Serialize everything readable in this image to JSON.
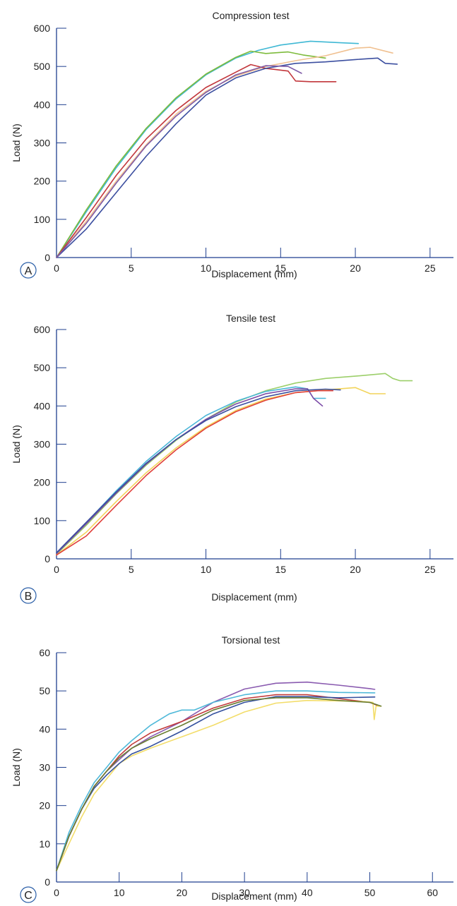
{
  "chart_data": [
    {
      "type": "line",
      "panel_label": "A",
      "title": "Compression test",
      "xlabel": "Displacement (mm)",
      "ylabel": "Load (N)",
      "xlim": [
        0,
        26
      ],
      "ylim": [
        0,
        600
      ],
      "xticks": [
        0,
        5,
        10,
        15,
        20,
        25
      ],
      "yticks": [
        0,
        100,
        200,
        300,
        400,
        500,
        600
      ],
      "grid": false,
      "series": [
        {
          "color": "#3fb8d4",
          "points": [
            [
              0,
              0
            ],
            [
              2,
              120
            ],
            [
              4,
              235
            ],
            [
              6,
              335
            ],
            [
              8,
              415
            ],
            [
              10,
              478
            ],
            [
              12,
              522
            ],
            [
              13.5,
              542
            ],
            [
              15,
              556
            ],
            [
              17,
              566
            ],
            [
              19,
              562
            ],
            [
              20.2,
              560
            ]
          ]
        },
        {
          "color": "#7dbb3c",
          "points": [
            [
              0,
              0
            ],
            [
              2,
              125
            ],
            [
              4,
              240
            ],
            [
              6,
              338
            ],
            [
              8,
              418
            ],
            [
              10,
              480
            ],
            [
              12,
              524
            ],
            [
              13,
              540
            ],
            [
              14,
              534
            ],
            [
              15.5,
              538
            ],
            [
              16.5,
              530
            ],
            [
              18,
              522
            ]
          ]
        },
        {
          "color": "#f0c090",
          "points": [
            [
              0,
              0
            ],
            [
              2,
              95
            ],
            [
              4,
              200
            ],
            [
              6,
              295
            ],
            [
              8,
              375
            ],
            [
              10,
              435
            ],
            [
              12,
              475
            ],
            [
              14,
              500
            ],
            [
              16,
              515
            ],
            [
              18,
              528
            ],
            [
              20,
              548
            ],
            [
              21,
              550
            ],
            [
              22.5,
              535
            ]
          ]
        },
        {
          "color": "#c2363b",
          "points": [
            [
              0,
              0
            ],
            [
              2,
              105
            ],
            [
              4,
              215
            ],
            [
              6,
              310
            ],
            [
              8,
              385
            ],
            [
              10,
              445
            ],
            [
              12,
              485
            ],
            [
              13,
              505
            ],
            [
              14,
              495
            ],
            [
              15.5,
              488
            ],
            [
              16,
              462
            ],
            [
              17,
              460
            ],
            [
              18.7,
              460
            ]
          ]
        },
        {
          "color": "#3c4fa0",
          "points": [
            [
              0,
              0
            ],
            [
              2,
              75
            ],
            [
              4,
              170
            ],
            [
              6,
              265
            ],
            [
              8,
              350
            ],
            [
              10,
              425
            ],
            [
              12,
              470
            ],
            [
              14,
              495
            ],
            [
              16,
              508
            ],
            [
              18,
              512
            ],
            [
              20,
              518
            ],
            [
              21.5,
              522
            ],
            [
              22,
              508
            ],
            [
              22.8,
              506
            ]
          ]
        },
        {
          "color": "#7f5aa6",
          "points": [
            [
              0,
              0
            ],
            [
              2,
              90
            ],
            [
              4,
              195
            ],
            [
              6,
              292
            ],
            [
              8,
              370
            ],
            [
              10,
              432
            ],
            [
              12,
              478
            ],
            [
              14,
              502
            ],
            [
              15.5,
              500
            ],
            [
              16.4,
              482
            ]
          ]
        }
      ]
    },
    {
      "type": "line",
      "panel_label": "B",
      "title": "Tensile test",
      "xlabel": "Displacement (mm)",
      "ylabel": "Load (N)",
      "xlim": [
        0,
        26
      ],
      "ylim": [
        0,
        600
      ],
      "xticks": [
        0,
        5,
        10,
        15,
        20,
        25
      ],
      "yticks": [
        0,
        100,
        200,
        300,
        400,
        500,
        600
      ],
      "grid": false,
      "series": [
        {
          "color": "#9ccf6a",
          "points": [
            [
              0,
              12
            ],
            [
              2,
              88
            ],
            [
              4,
              170
            ],
            [
              6,
              245
            ],
            [
              8,
              310
            ],
            [
              10,
              365
            ],
            [
              12,
              410
            ],
            [
              14,
              440
            ],
            [
              16,
              460
            ],
            [
              18,
              472
            ],
            [
              20,
              478
            ],
            [
              22,
              485
            ],
            [
              22.5,
              472
            ],
            [
              23,
              466
            ],
            [
              23.8,
              466
            ]
          ]
        },
        {
          "color": "#f2d45a",
          "points": [
            [
              0,
              10
            ],
            [
              2,
              70
            ],
            [
              4,
              150
            ],
            [
              6,
              225
            ],
            [
              8,
              290
            ],
            [
              10,
              345
            ],
            [
              12,
              388
            ],
            [
              14,
              418
            ],
            [
              16,
              435
            ],
            [
              18,
              442
            ],
            [
              20,
              448
            ],
            [
              21,
              432
            ],
            [
              22,
              432
            ]
          ]
        },
        {
          "color": "#4ab6d8",
          "points": [
            [
              0,
              15
            ],
            [
              2,
              95
            ],
            [
              4,
              178
            ],
            [
              6,
              255
            ],
            [
              8,
              320
            ],
            [
              10,
              375
            ],
            [
              12,
              412
            ],
            [
              14,
              438
            ],
            [
              16,
              450
            ],
            [
              16.8,
              445
            ],
            [
              17.2,
              420
            ],
            [
              18,
              420
            ]
          ]
        },
        {
          "color": "#e0403a",
          "points": [
            [
              0,
              10
            ],
            [
              2,
              60
            ],
            [
              4,
              140
            ],
            [
              6,
              218
            ],
            [
              8,
              285
            ],
            [
              10,
              342
            ],
            [
              12,
              385
            ],
            [
              14,
              415
            ],
            [
              16,
              435
            ],
            [
              17.5,
              440
            ],
            [
              18.5,
              440
            ]
          ]
        },
        {
          "color": "#7a4aa6",
          "points": [
            [
              0,
              14
            ],
            [
              2,
              92
            ],
            [
              4,
              172
            ],
            [
              6,
              248
            ],
            [
              8,
              312
            ],
            [
              10,
              365
            ],
            [
              12,
              405
            ],
            [
              14,
              432
            ],
            [
              16,
              445
            ],
            [
              16.8,
              445
            ],
            [
              17.2,
              420
            ],
            [
              17.8,
              400
            ]
          ]
        },
        {
          "color": "#3a4f9e",
          "points": [
            [
              0,
              16
            ],
            [
              2,
              96
            ],
            [
              4,
              175
            ],
            [
              6,
              250
            ],
            [
              8,
              312
            ],
            [
              10,
              362
            ],
            [
              12,
              398
            ],
            [
              14,
              424
            ],
            [
              16,
              440
            ],
            [
              18,
              444
            ],
            [
              19,
              442
            ]
          ]
        }
      ]
    },
    {
      "type": "line",
      "panel_label": "C",
      "title": "Torsional test",
      "xlabel": "Displacement (mm)",
      "ylabel": "Load (N)",
      "xlim": [
        0,
        62
      ],
      "ylim": [
        0,
        60
      ],
      "xticks": [
        0,
        10,
        20,
        30,
        40,
        50,
        60
      ],
      "yticks": [
        0,
        10,
        20,
        30,
        40,
        50,
        60
      ],
      "grid": false,
      "series": [
        {
          "color": "#8a5bb0",
          "points": [
            [
              0,
              3
            ],
            [
              2,
              12
            ],
            [
              4,
              19
            ],
            [
              6,
              25
            ],
            [
              8,
              29
            ],
            [
              10,
              32
            ],
            [
              12,
              35
            ],
            [
              15,
              38
            ],
            [
              20,
              42
            ],
            [
              25,
              47
            ],
            [
              30,
              50.5
            ],
            [
              35,
              52
            ],
            [
              40,
              52.3
            ],
            [
              45,
              51.5
            ],
            [
              50,
              50.6
            ],
            [
              50.8,
              50.4
            ]
          ]
        },
        {
          "color": "#4fb9d9",
          "points": [
            [
              0,
              3
            ],
            [
              2,
              13
            ],
            [
              4,
              20
            ],
            [
              6,
              26
            ],
            [
              8,
              30
            ],
            [
              10,
              34
            ],
            [
              12,
              37
            ],
            [
              15,
              41
            ],
            [
              18,
              44
            ],
            [
              20,
              45
            ],
            [
              22,
              45
            ],
            [
              25,
              47
            ],
            [
              30,
              49
            ],
            [
              35,
              50
            ],
            [
              40,
              50
            ],
            [
              45,
              49.6
            ],
            [
              50.8,
              49.5
            ]
          ]
        },
        {
          "color": "#c23b3b",
          "points": [
            [
              0,
              3
            ],
            [
              2,
              12
            ],
            [
              4,
              19
            ],
            [
              6,
              25
            ],
            [
              8,
              29
            ],
            [
              10,
              33
            ],
            [
              12,
              36
            ],
            [
              15,
              39
            ],
            [
              20,
              42
            ],
            [
              25,
              45.5
            ],
            [
              30,
              48
            ],
            [
              35,
              49
            ],
            [
              40,
              49
            ],
            [
              45,
              48
            ],
            [
              50,
              47
            ],
            [
              51.5,
              46
            ]
          ]
        },
        {
          "color": "#f3dd6a",
          "points": [
            [
              0,
              3
            ],
            [
              2,
              10
            ],
            [
              4,
              17
            ],
            [
              6,
              23
            ],
            [
              8,
              27
            ],
            [
              10,
              31
            ],
            [
              12,
              33
            ],
            [
              15,
              35
            ],
            [
              20,
              38
            ],
            [
              25,
              41
            ],
            [
              30,
              44.5
            ],
            [
              35,
              46.8
            ],
            [
              40,
              47.5
            ],
            [
              45,
              47.4
            ],
            [
              49,
              47.2
            ],
            [
              50.5,
              47
            ],
            [
              50.7,
              42.5
            ],
            [
              51,
              46
            ],
            [
              51.8,
              46
            ]
          ]
        },
        {
          "color": "#34509e",
          "points": [
            [
              0,
              3
            ],
            [
              2,
              12
            ],
            [
              4,
              19
            ],
            [
              6,
              24.5
            ],
            [
              8,
              28
            ],
            [
              10,
              31
            ],
            [
              12,
              33.5
            ],
            [
              15,
              35.5
            ],
            [
              20,
              39.5
            ],
            [
              25,
              44
            ],
            [
              30,
              47
            ],
            [
              35,
              48.5
            ],
            [
              40,
              48.5
            ],
            [
              45,
              48.2
            ],
            [
              50.8,
              48.4
            ]
          ]
        },
        {
          "color": "#6a7d32",
          "points": [
            [
              0,
              3
            ],
            [
              2,
              12
            ],
            [
              4,
              19
            ],
            [
              6,
              25
            ],
            [
              8,
              29
            ],
            [
              10,
              32.5
            ],
            [
              12,
              35
            ],
            [
              15,
              37.5
            ],
            [
              20,
              41
            ],
            [
              25,
              45
            ],
            [
              30,
              47.5
            ],
            [
              35,
              48.2
            ],
            [
              40,
              48.2
            ],
            [
              45,
              47.5
            ],
            [
              50,
              47
            ],
            [
              51.8,
              46
            ]
          ]
        }
      ]
    }
  ]
}
